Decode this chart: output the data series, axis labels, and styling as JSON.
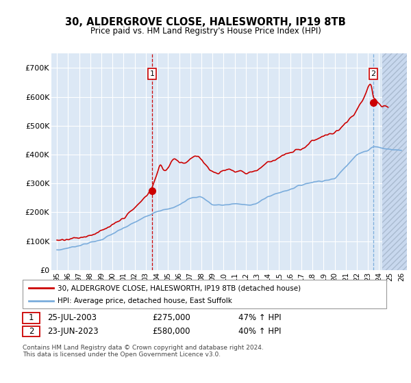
{
  "title": "30, ALDERGROVE CLOSE, HALESWORTH, IP19 8TB",
  "subtitle": "Price paid vs. HM Land Registry's House Price Index (HPI)",
  "ylabel_ticks": [
    "£0",
    "£100K",
    "£200K",
    "£300K",
    "£400K",
    "£500K",
    "£600K",
    "£700K"
  ],
  "ytick_values": [
    0,
    100000,
    200000,
    300000,
    400000,
    500000,
    600000,
    700000
  ],
  "ylim": [
    0,
    750000
  ],
  "xlim_start": 1994.5,
  "xlim_end": 2026.5,
  "bg_color": "#dde8f8",
  "plot_bg_color": "#dce8f5",
  "red_line_color": "#cc0000",
  "blue_line_color": "#7aacdc",
  "marker1_x": 2003.56,
  "marker1_y": 275000,
  "marker2_x": 2023.47,
  "marker2_y": 580000,
  "legend_line1": "30, ALDERGROVE CLOSE, HALESWORTH, IP19 8TB (detached house)",
  "legend_line2": "HPI: Average price, detached house, East Suffolk",
  "table_row1": [
    "1",
    "25-JUL-2003",
    "£275,000",
    "47% ↑ HPI"
  ],
  "table_row2": [
    "2",
    "23-JUN-2023",
    "£580,000",
    "40% ↑ HPI"
  ],
  "footer": "Contains HM Land Registry data © Crown copyright and database right 2024.\nThis data is licensed under the Open Government Licence v3.0.",
  "xtick_years": [
    1995,
    1996,
    1997,
    1998,
    1999,
    2000,
    2001,
    2002,
    2003,
    2004,
    2005,
    2006,
    2007,
    2008,
    2009,
    2010,
    2011,
    2012,
    2013,
    2014,
    2015,
    2016,
    2017,
    2018,
    2019,
    2020,
    2021,
    2022,
    2023,
    2024,
    2025,
    2026
  ],
  "hatch_start": 2024.3
}
